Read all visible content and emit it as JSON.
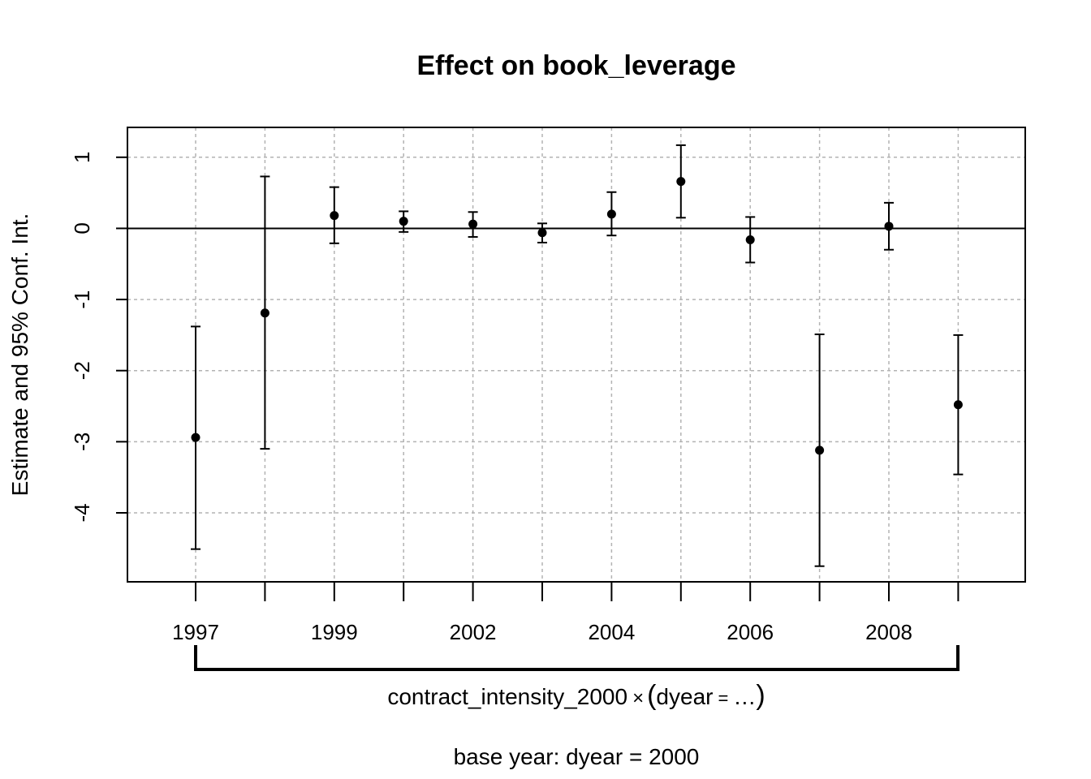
{
  "chart_data": {
    "type": "scatter",
    "title": "Effect on book_leverage",
    "ylabel": "Estimate and 95% Conf. Int.",
    "interaction_label": {
      "var": "contract_intensity_2000",
      "times": "×",
      "open": "(",
      "term": "dyear",
      "eq": "=",
      "dots": "…",
      "close": ")"
    },
    "note": "base year: dyear = 2000",
    "x_tick_labels": [
      "1997",
      "1999",
      "2002",
      "2004",
      "2006",
      "2008"
    ],
    "y_ticks": [
      "1",
      "0",
      "-1",
      "-2",
      "-3",
      "-4"
    ],
    "ylim": [
      -4.97,
      1.42
    ],
    "reference_line": 0,
    "grid": true,
    "points": [
      {
        "x": "1997",
        "estimate": -2.94,
        "ci_low": -4.51,
        "ci_high": -1.38
      },
      {
        "x": "1998",
        "estimate": -1.19,
        "ci_low": -3.1,
        "ci_high": 0.73
      },
      {
        "x": "1999",
        "estimate": 0.18,
        "ci_low": -0.21,
        "ci_high": 0.58
      },
      {
        "x": "2001",
        "estimate": 0.1,
        "ci_low": -0.05,
        "ci_high": 0.24
      },
      {
        "x": "2002",
        "estimate": 0.06,
        "ci_low": -0.12,
        "ci_high": 0.23
      },
      {
        "x": "2003",
        "estimate": -0.06,
        "ci_low": -0.2,
        "ci_high": 0.07
      },
      {
        "x": "2004",
        "estimate": 0.2,
        "ci_low": -0.1,
        "ci_high": 0.51
      },
      {
        "x": "2005",
        "estimate": 0.66,
        "ci_low": 0.15,
        "ci_high": 1.17
      },
      {
        "x": "2006",
        "estimate": -0.16,
        "ci_low": -0.48,
        "ci_high": 0.16
      },
      {
        "x": "2007",
        "estimate": -3.12,
        "ci_low": -4.75,
        "ci_high": -1.49
      },
      {
        "x": "2008",
        "estimate": 0.03,
        "ci_low": -0.3,
        "ci_high": 0.36
      },
      {
        "x": "2009",
        "estimate": -2.48,
        "ci_low": -3.46,
        "ci_high": -1.5
      }
    ]
  }
}
